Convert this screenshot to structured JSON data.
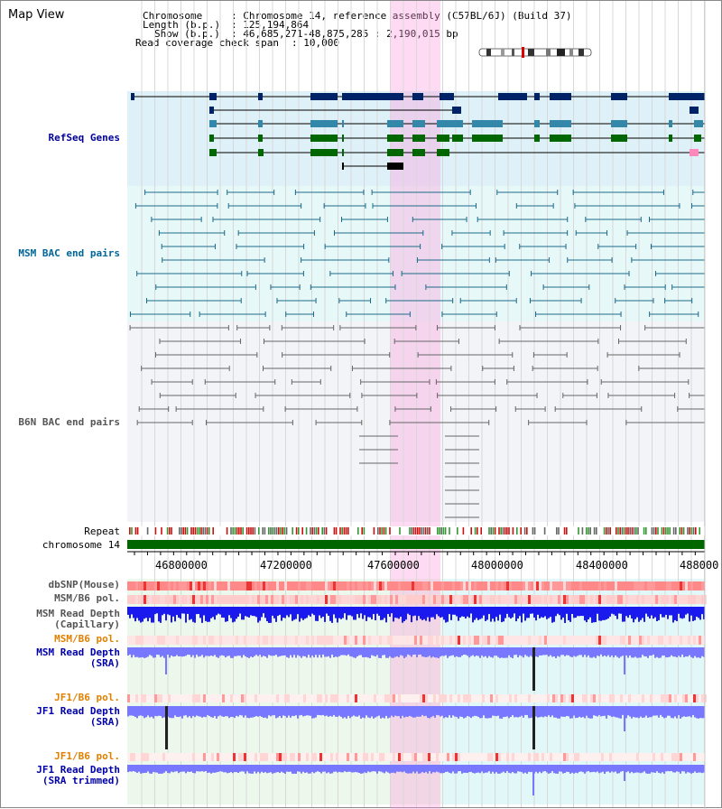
{
  "page": {
    "title": "Map View"
  },
  "header": {
    "chromosome_label": "Chromosome",
    "chromosome_value": ": Chromosome 14, reference assembly (C57BL/6J) (Build 37)",
    "length_label": "Length (b.p.)",
    "length_value": ": 125,194,864",
    "show_label": "Show (b.p.)",
    "show_value": ": 46,685,271-48,875,285 : 2,190,015 bp",
    "read_coverage_label": "Read coverage check span",
    "read_coverage_value": ": 10,000"
  },
  "tracks": {
    "refseq": "RefSeq Genes",
    "msm_bac": "MSM BAC end pairs",
    "b6n_bac": "B6N BAC end pairs",
    "repeat": "Repeat",
    "chromosome": "chromosome 14",
    "dbsnp": "dbSNP(Mouse)",
    "msm_b6_pol_1": "MSM/B6 pol.",
    "msm_depth_cap_1": "MSM Read Depth",
    "msm_depth_cap_2": "(Capillary)",
    "msm_b6_pol_2": "MSM/B6 pol.",
    "msm_depth_sra_1": "MSM Read Depth",
    "msm_depth_sra_2": "(SRA)",
    "jf1_b6_pol_1": "JF1/B6 pol.",
    "jf1_depth_sra_1": "JF1 Read Depth",
    "jf1_depth_sra_2": "(SRA)",
    "jf1_b6_pol_2": "JF1/B6 pol.",
    "jf1_depth_trim_1": "JF1 Read Depth",
    "jf1_depth_trim_2": "(SRA trimmed)"
  },
  "axis": {
    "ticks": [
      "46800000",
      "47200000",
      "47600000",
      "48000000",
      "48400000",
      "488000"
    ]
  },
  "colors": {
    "refseq_label": "#000099",
    "msm_label": "#006699",
    "b6n_label": "#555555",
    "pol_label": "#e08000",
    "depth_label": "#0000aa",
    "highlight": "#ff99dd",
    "chromosome_bar": "#006600",
    "depth_fill": "#7070ff"
  }
}
